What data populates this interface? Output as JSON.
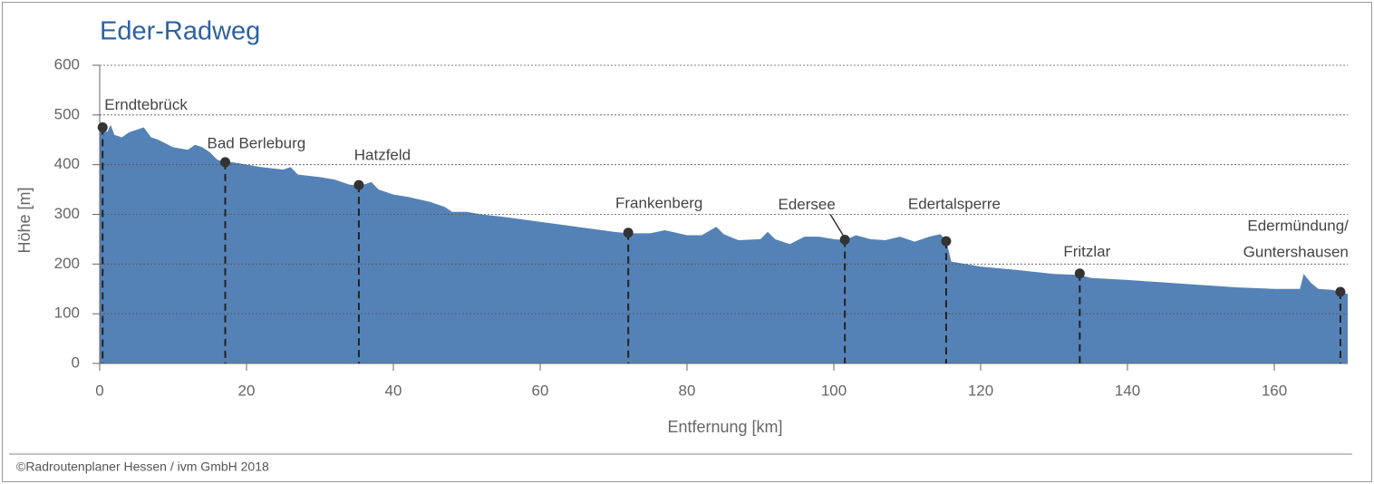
{
  "chart_data": {
    "type": "area",
    "title": "Eder-Radweg",
    "xlabel": "Entfernung [km]",
    "ylabel": "Höhe [m]",
    "footer": "©Radroutenplaner Hessen / ivm GmbH 2018",
    "xlim": [
      0,
      170
    ],
    "ylim": [
      0,
      600
    ],
    "xticks": [
      0,
      20,
      40,
      60,
      80,
      100,
      120,
      140,
      160
    ],
    "yticks": [
      0,
      100,
      200,
      300,
      400,
      500,
      600
    ],
    "grid": true,
    "series": [
      {
        "color": "#5582b6",
        "x": [
          0,
          0.5,
          1,
          1.5,
          2,
          3,
          4,
          5,
          6,
          7,
          8,
          10,
          12,
          13,
          14,
          15,
          16,
          17,
          18,
          20,
          22,
          25,
          26,
          27,
          30,
          32,
          34,
          35,
          36,
          37,
          38,
          40,
          42,
          45,
          47,
          48,
          50,
          52,
          55,
          60,
          65,
          70,
          72,
          75,
          77,
          80,
          82,
          84,
          85,
          87,
          90,
          91,
          92,
          94,
          96,
          98,
          100,
          101.5,
          103,
          105,
          107,
          109,
          111,
          113,
          114.5,
          115.3,
          116,
          118,
          120,
          125,
          130,
          133.5,
          135,
          140,
          145,
          150,
          155,
          160,
          162,
          163.5,
          164,
          165,
          166,
          168,
          169,
          170
        ],
        "values": [
          475,
          480,
          465,
          480,
          460,
          455,
          465,
          470,
          475,
          455,
          450,
          435,
          430,
          440,
          435,
          425,
          410,
          405,
          405,
          400,
          395,
          390,
          395,
          380,
          375,
          370,
          360,
          358,
          360,
          365,
          350,
          340,
          335,
          325,
          315,
          305,
          305,
          300,
          295,
          285,
          275,
          265,
          262,
          262,
          268,
          258,
          258,
          275,
          260,
          248,
          250,
          265,
          250,
          240,
          255,
          255,
          250,
          248,
          258,
          250,
          248,
          255,
          245,
          255,
          260,
          248,
          205,
          200,
          195,
          188,
          180,
          178,
          172,
          168,
          163,
          158,
          153,
          150,
          150,
          150,
          180,
          162,
          150,
          148,
          143,
          140
        ]
      }
    ],
    "points": [
      {
        "label": "Erndtebrück",
        "x": 0.4,
        "y": 475
      },
      {
        "label": "Bad Berleburg",
        "x": 17.1,
        "y": 405
      },
      {
        "label": "Hatzfeld",
        "x": 35.3,
        "y": 359
      },
      {
        "label": "Frankenberg",
        "x": 72,
        "y": 263
      },
      {
        "label": "Edersee",
        "x": 101.5,
        "y": 249
      },
      {
        "label": "Edertalsperre",
        "x": 115.3,
        "y": 246
      },
      {
        "label": "Fritzlar",
        "x": 133.5,
        "y": 181
      },
      {
        "label": [
          "Edermündung/",
          "Guntershausen"
        ],
        "x": 169,
        "y": 144
      }
    ]
  }
}
